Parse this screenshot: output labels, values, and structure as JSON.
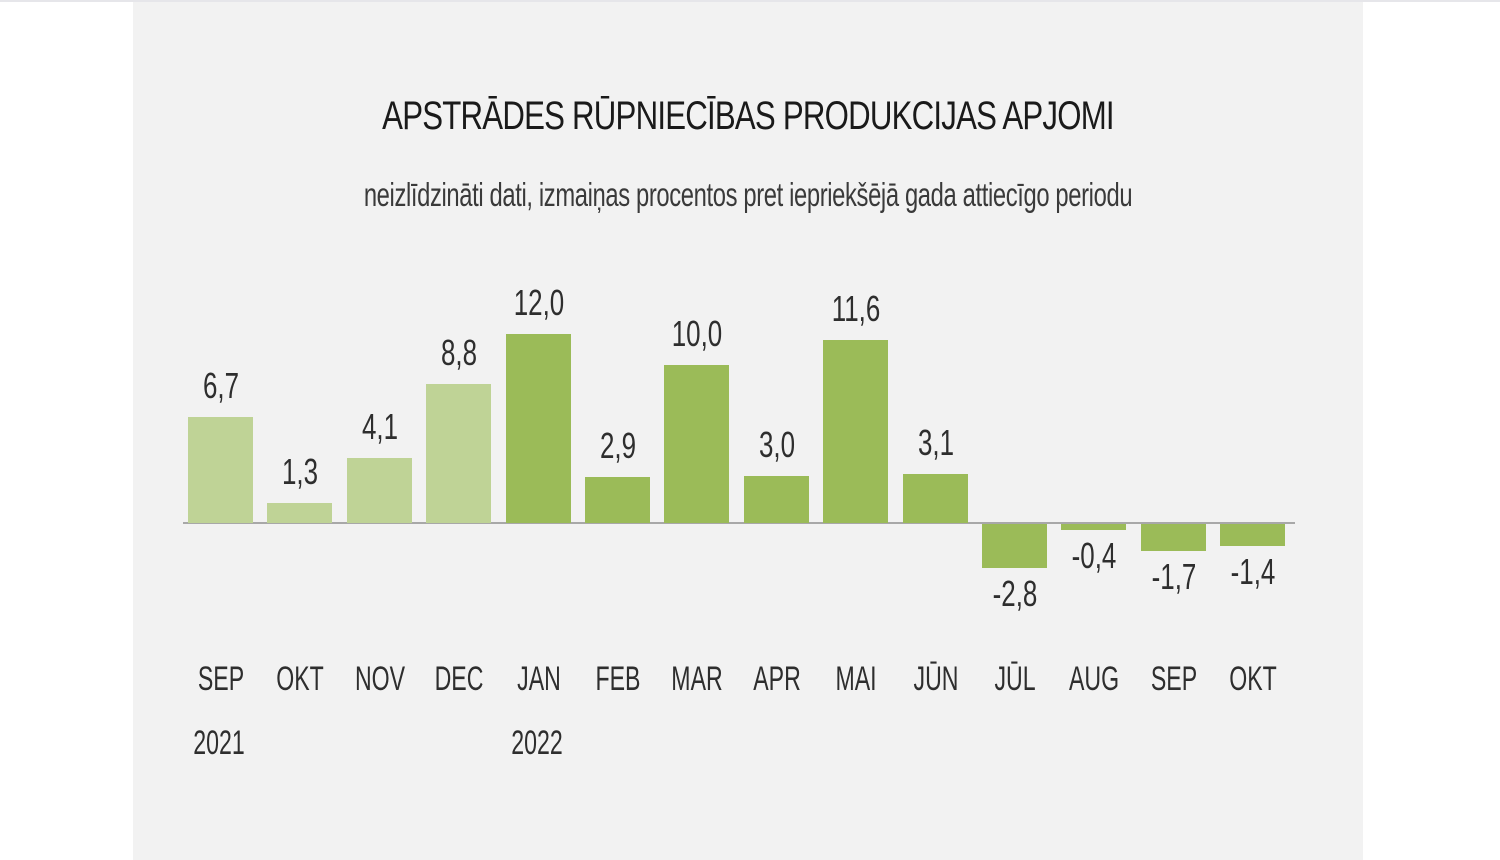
{
  "chart_data": {
    "type": "bar",
    "title": "APSTRĀDES RŪPNIECĪBAS PRODUKCIJAS APJOMI",
    "subtitle": "neizlīdzināti dati, izmaiņas procentos pret iepriekšējā gada attiecīgo periodu",
    "xlabel": "",
    "ylabel": "",
    "grid": false,
    "legend": null,
    "categories": [
      "SEP",
      "OKT",
      "NOV",
      "DEC",
      "JAN",
      "FEB",
      "MAR",
      "APR",
      "MAI",
      "JŪN",
      "JŪL",
      "AUG",
      "SEP",
      "OKT"
    ],
    "years": [
      {
        "label": "2021",
        "index": 0
      },
      {
        "label": "2022",
        "index": 4
      }
    ],
    "values": [
      6.7,
      1.3,
      4.1,
      8.8,
      12.0,
      2.9,
      10.0,
      3.0,
      11.6,
      3.1,
      -2.8,
      -0.4,
      -1.7,
      -1.4
    ],
    "value_labels": [
      "6,7",
      "1,3",
      "4,1",
      "8,8",
      "12,0",
      "2,9",
      "10,0",
      "3,0",
      "11,6",
      "3,1",
      "-2,8",
      "-0,4",
      "-1,7",
      "-1,4"
    ],
    "series_years": [
      "2021",
      "2021",
      "2021",
      "2021",
      "2022",
      "2022",
      "2022",
      "2022",
      "2022",
      "2022",
      "2022",
      "2022",
      "2022",
      "2022"
    ],
    "colors": {
      "2021": "#bfd396",
      "2022": "#9bbb58"
    },
    "ylim": [
      -3,
      12
    ]
  }
}
